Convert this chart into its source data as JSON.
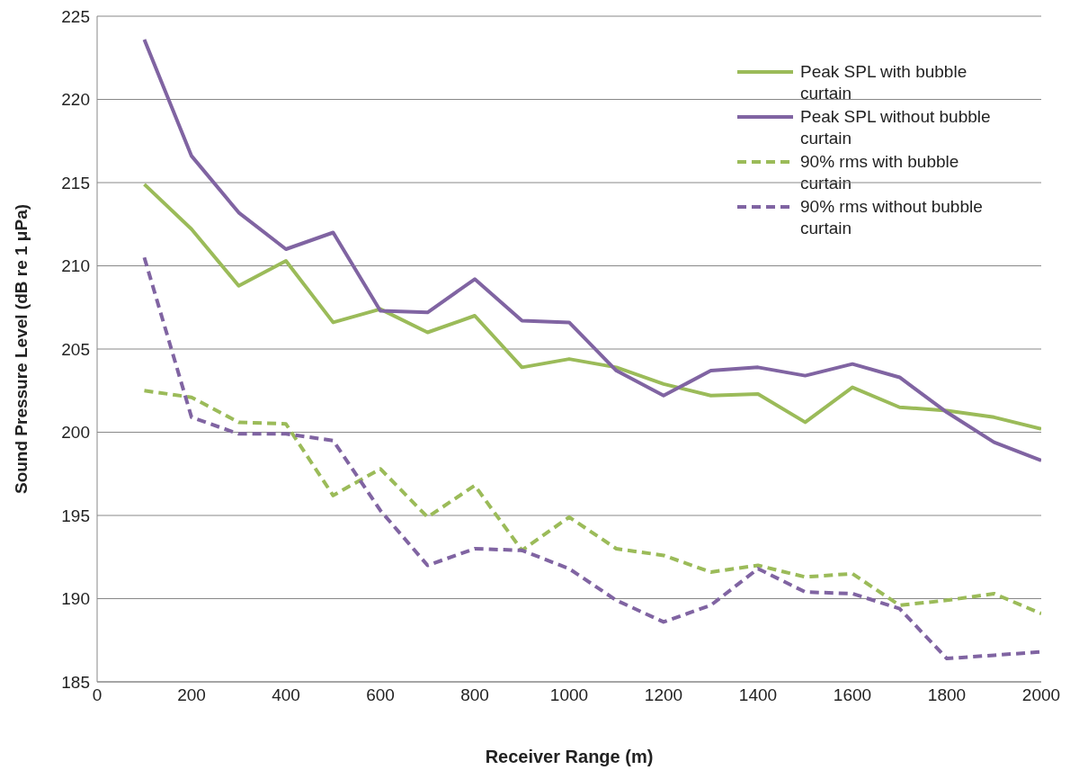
{
  "chart_data": {
    "type": "line",
    "xlabel": "Receiver Range (m)",
    "ylabel": "Sound Pressure Level (dB re 1 μPa)",
    "x": [
      100,
      200,
      300,
      400,
      500,
      600,
      700,
      800,
      900,
      1000,
      1100,
      1200,
      1300,
      1400,
      1500,
      1600,
      1700,
      1800,
      1900,
      2000
    ],
    "series": [
      {
        "name": "Peak SPL with bubble curtain",
        "color": "#9bbb59",
        "line_style": "solid",
        "values": [
          214.9,
          212.2,
          208.8,
          210.3,
          206.6,
          207.4,
          206.0,
          207.0,
          203.9,
          204.4,
          203.9,
          202.9,
          202.2,
          202.3,
          200.6,
          202.7,
          201.5,
          201.3,
          200.9,
          200.2
        ]
      },
      {
        "name": "Peak SPL without bubble curtain",
        "color": "#8064a2",
        "line_style": "solid",
        "values": [
          223.6,
          216.6,
          213.2,
          211.0,
          212.0,
          207.3,
          207.2,
          209.2,
          206.7,
          206.6,
          203.7,
          202.2,
          203.7,
          203.9,
          203.4,
          204.1,
          203.3,
          201.2,
          199.4,
          198.3
        ]
      },
      {
        "name": "90% rms with bubble curtain",
        "color": "#9bbb59",
        "line_style": "dashed",
        "values": [
          202.5,
          202.1,
          200.6,
          200.5,
          196.2,
          197.8,
          194.9,
          196.8,
          192.9,
          194.9,
          193.0,
          192.6,
          191.6,
          192.0,
          191.3,
          191.5,
          189.6,
          189.9,
          190.3,
          189.1
        ]
      },
      {
        "name": "90% rms without bubble curtain",
        "color": "#8064a2",
        "line_style": "dashed",
        "values": [
          210.5,
          200.9,
          199.9,
          199.9,
          199.5,
          195.3,
          192.0,
          193.0,
          192.9,
          191.8,
          189.9,
          188.6,
          189.6,
          191.8,
          190.4,
          190.3,
          189.4,
          186.4,
          186.6,
          186.8
        ]
      }
    ],
    "xlim": [
      0,
      2000
    ],
    "xticks": [
      0,
      200,
      400,
      600,
      800,
      1000,
      1200,
      1400,
      1600,
      1800,
      2000
    ],
    "ylim": [
      185,
      225
    ],
    "yticks": [
      185,
      190,
      195,
      200,
      205,
      210,
      215,
      220,
      225
    ],
    "grid": "y",
    "legend": "top right",
    "marker": "none"
  }
}
